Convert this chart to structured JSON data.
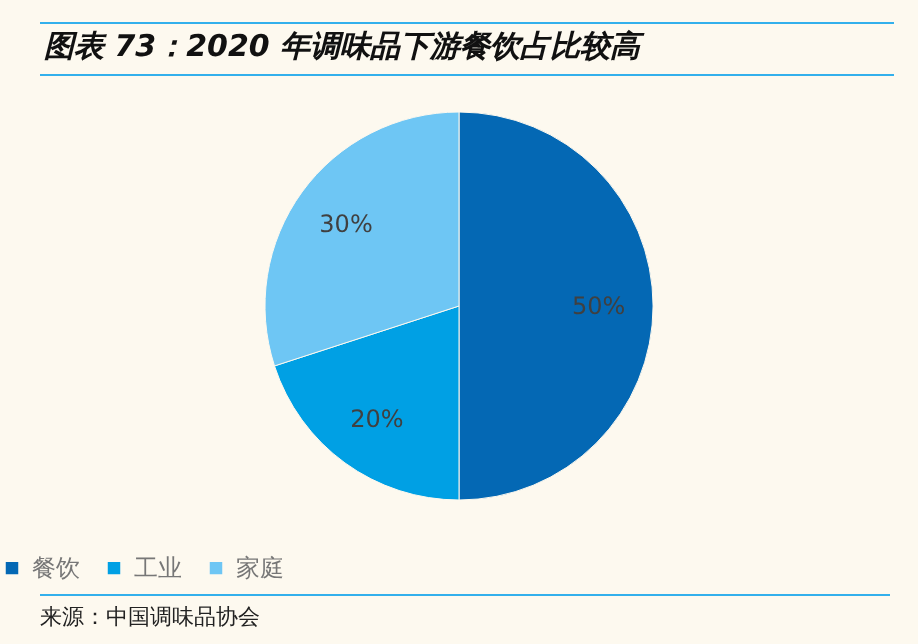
{
  "chart_data": {
    "type": "pie",
    "title": "图表 73：2020 年调味品下游餐饮占比较高",
    "categories": [
      "餐饮",
      "工业",
      "家庭"
    ],
    "values": [
      50,
      20,
      30
    ],
    "colors": [
      "#0468b4",
      "#00a0e4",
      "#6ec6f4"
    ],
    "value_labels": [
      "50%",
      "20%",
      "30%"
    ],
    "legend": "bottom",
    "annotations": [
      "来源：中国调味品协会"
    ]
  }
}
